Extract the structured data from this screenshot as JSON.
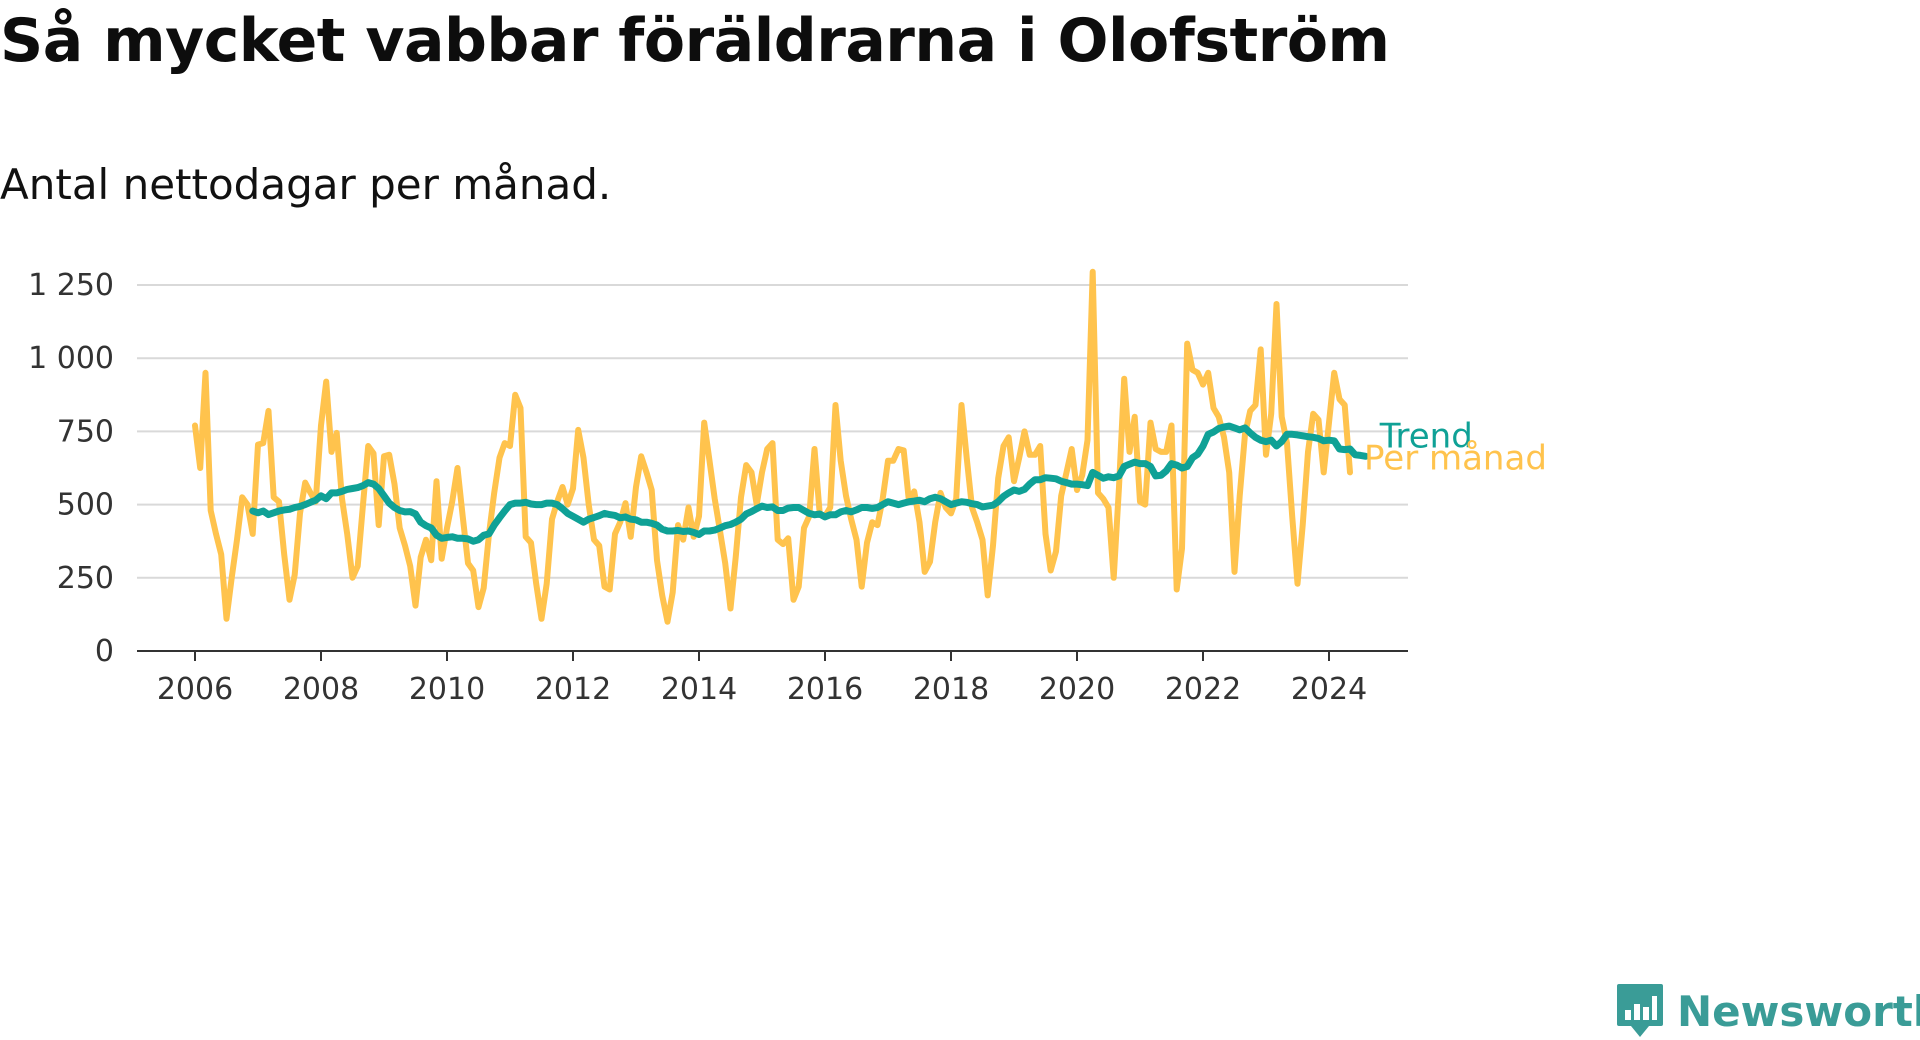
{
  "title": "Så mycket vabbar föräldrarna i Olofström",
  "subtitle": "Antal nettodagar per månad.",
  "brand": {
    "name": "Newsworthy",
    "color": "#3a9c97",
    "icon": "newsworthy-logo-icon"
  },
  "chart_data": {
    "type": "line",
    "title": "Så mycket vabbar föräldrarna i Olofström",
    "subtitle": "Antal nettodagar per månad.",
    "xlabel": "",
    "ylabel": "",
    "xlim": [
      2005.6,
      2025.3
    ],
    "ylim": [
      0,
      1250
    ],
    "grid": true,
    "legend": "inline-right",
    "x_ticks": [
      2006,
      2008,
      2010,
      2012,
      2014,
      2016,
      2018,
      2020,
      2022,
      2024
    ],
    "x_tick_labels": [
      "2006",
      "2008",
      "2010",
      "2012",
      "2014",
      "2016",
      "2018",
      "2020",
      "2022",
      "2024"
    ],
    "y_ticks": [
      0,
      250,
      500,
      750,
      1000,
      1250
    ],
    "y_tick_labels": [
      "0",
      "250",
      "500",
      "750",
      "1 000",
      "1 250"
    ],
    "series": [
      {
        "name": "Per månad",
        "color": "#ffc34d",
        "x_start": 2006.0,
        "x_step": 0.0833333,
        "values": [
          770,
          625,
          950,
          480,
          400,
          330,
          110,
          250,
          380,
          525,
          500,
          400,
          705,
          710,
          820,
          525,
          510,
          330,
          175,
          260,
          470,
          575,
          540,
          510,
          770,
          920,
          680,
          745,
          520,
          400,
          250,
          290,
          500,
          700,
          675,
          430,
          665,
          670,
          570,
          420,
          360,
          290,
          155,
          320,
          380,
          310,
          580,
          315,
          420,
          510,
          625,
          460,
          300,
          275,
          150,
          215,
          400,
          540,
          660,
          710,
          700,
          875,
          830,
          390,
          370,
          230,
          110,
          230,
          450,
          510,
          560,
          500,
          555,
          755,
          660,
          500,
          380,
          360,
          220,
          210,
          400,
          440,
          505,
          390,
          560,
          665,
          610,
          550,
          310,
          190,
          100,
          200,
          430,
          380,
          490,
          390,
          460,
          780,
          650,
          520,
          410,
          300,
          145,
          320,
          525,
          635,
          610,
          500,
          610,
          690,
          710,
          380,
          365,
          385,
          175,
          220,
          420,
          460,
          690,
          470,
          460,
          490,
          840,
          650,
          530,
          450,
          380,
          220,
          370,
          440,
          430,
          520,
          650,
          650,
          690,
          685,
          510,
          545,
          440,
          270,
          305,
          440,
          540,
          490,
          470,
          520,
          840,
          660,
          490,
          440,
          380,
          190,
          360,
          590,
          700,
          730,
          580,
          660,
          750,
          670,
          670,
          700,
          400,
          275,
          340,
          530,
          610,
          690,
          550,
          600,
          720,
          1295,
          540,
          520,
          490,
          250,
          560,
          930,
          680,
          800,
          510,
          500,
          780,
          690,
          680,
          680,
          770,
          210,
          350,
          1050,
          960,
          950,
          910,
          950,
          830,
          800,
          730,
          610,
          270,
          530,
          740,
          820,
          840,
          1030,
          670,
          810,
          1185,
          800,
          710,
          460,
          230,
          430,
          680,
          810,
          790,
          610,
          780,
          950,
          860,
          840,
          610
        ]
      },
      {
        "name": "Trend",
        "color": "#0fa196",
        "x_start": 2006.9166667,
        "x_step": 0.0833333,
        "values": [
          478,
          472,
          478,
          466,
          472,
          478,
          482,
          484,
          490,
          494,
          500,
          508,
          515,
          530,
          520,
          540,
          540,
          545,
          552,
          555,
          558,
          565,
          575,
          570,
          555,
          530,
          505,
          490,
          480,
          475,
          476,
          468,
          440,
          428,
          420,
          396,
          385,
          388,
          390,
          385,
          385,
          383,
          375,
          380,
          395,
          400,
          430,
          455,
          478,
          500,
          505,
          505,
          508,
          502,
          500,
          500,
          505,
          505,
          500,
          486,
          470,
          460,
          450,
          440,
          450,
          456,
          462,
          470,
          466,
          463,
          455,
          458,
          450,
          448,
          440,
          440,
          436,
          430,
          416,
          410,
          410,
          412,
          408,
          410,
          405,
          398,
          410,
          410,
          413,
          420,
          428,
          432,
          440,
          450,
          468,
          476,
          486,
          495,
          490,
          492,
          480,
          480,
          488,
          490,
          490,
          480,
          470,
          465,
          468,
          458,
          465,
          465,
          475,
          480,
          475,
          482,
          490,
          490,
          487,
          490,
          500,
          510,
          505,
          500,
          505,
          510,
          512,
          515,
          510,
          520,
          525,
          520,
          510,
          500,
          505,
          510,
          508,
          503,
          500,
          492,
          495,
          498,
          510,
          528,
          540,
          550,
          545,
          552,
          570,
          585,
          585,
          592,
          590,
          588,
          580,
          575,
          570,
          570,
          568,
          565,
          610,
          600,
          590,
          595,
          592,
          598,
          630,
          638,
          645,
          640,
          640,
          630,
          598,
          600,
          615,
          640,
          635,
          625,
          630,
          660,
          672,
          700,
          740,
          748,
          760,
          765,
          768,
          762,
          755,
          762,
          745,
          730,
          720,
          715,
          720,
          700,
          715,
          740,
          740,
          738,
          735,
          732,
          730,
          726,
          718,
          720,
          718,
          690,
          688,
          690,
          670,
          668,
          665
        ]
      }
    ]
  }
}
